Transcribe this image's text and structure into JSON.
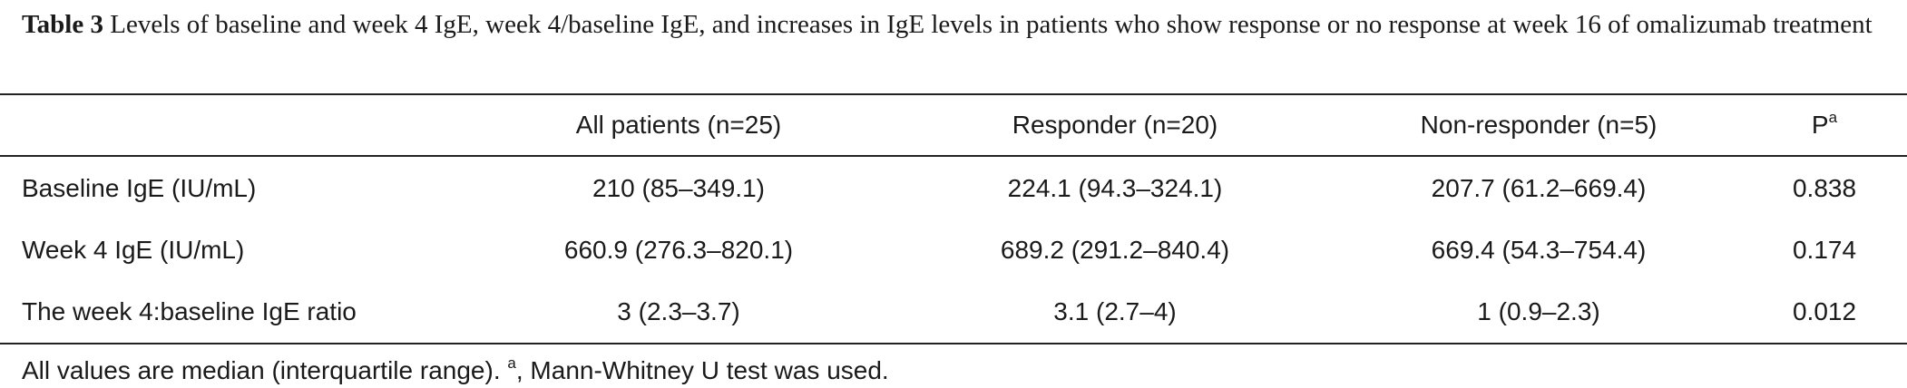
{
  "caption": {
    "label": "Table 3",
    "text": "Levels of baseline and week 4 IgE, week 4/baseline IgE, and increases in IgE levels in patients who show response or no response at week 16 of omalizumab treatment"
  },
  "table": {
    "header": [
      "All patients (n=25)",
      "Responder (n=20)",
      "Non-responder (n=5)",
      "P"
    ],
    "header_sup": "a",
    "rows": [
      [
        "Baseline IgE (IU/mL)",
        "210 (85–349.1)",
        "224.1 (94.3–324.1)",
        "207.7 (61.2–669.4)",
        "0.838"
      ],
      [
        "Week 4 IgE (IU/mL)",
        "660.9 (276.3–820.1)",
        "689.2 (291.2–840.4)",
        "669.4 (54.3–754.4)",
        "0.174"
      ],
      [
        "The week 4:baseline IgE ratio",
        "3 (2.3–3.7)",
        "3.1 (2.7–4)",
        "1 (0.9–2.3)",
        "0.012"
      ]
    ]
  },
  "footnote": {
    "text": "All values are median (interquartile range). ",
    "sup": "a",
    "after": ", Mann-Whitney U test was used."
  }
}
